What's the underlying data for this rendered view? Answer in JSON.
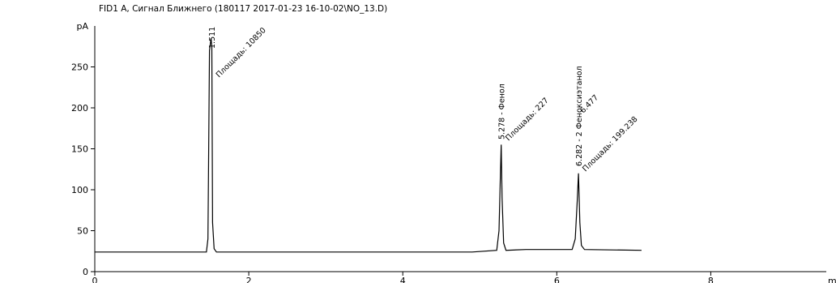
{
  "chart_data": {
    "type": "line",
    "title": "FID1 A, Сигнал Ближнего (180117 2017-01-23 16-10-02\\NO_13.D)",
    "ylabel": "pA",
    "xlabel": "min",
    "xlim": [
      0,
      9.5
    ],
    "ylim": [
      0,
      300
    ],
    "x_ticks": [
      0,
      2,
      4,
      6,
      8
    ],
    "y_ticks": [
      0,
      50,
      100,
      150,
      200,
      250
    ],
    "grid": false,
    "series": [
      {
        "color": "#000000",
        "x": [
          0,
          1.45,
          1.47,
          1.49,
          1.51,
          1.52,
          1.53,
          1.55,
          1.58,
          4.9,
          5.22,
          5.25,
          5.265,
          5.278,
          5.29,
          5.31,
          5.34,
          5.6,
          6.2,
          6.24,
          6.265,
          6.282,
          6.3,
          6.32,
          6.36,
          7.1
        ],
        "y": [
          24,
          24,
          40,
          270,
          285,
          275,
          60,
          28,
          24,
          24,
          26,
          50,
          110,
          155,
          90,
          35,
          26,
          27,
          27,
          40,
          85,
          120,
          60,
          32,
          27,
          26
        ]
      }
    ],
    "peaks": [
      {
        "time_label": "1.511",
        "area_label": "Площадь: 10850"
      },
      {
        "time_label": "5.278 - Фенол",
        "area_label": "Площадь: 227"
      },
      {
        "time_label": "6.282 - 2 Феноксиэтанол",
        "extra_label": "6.477",
        "area_label": "Площадь: 199.238"
      }
    ]
  }
}
